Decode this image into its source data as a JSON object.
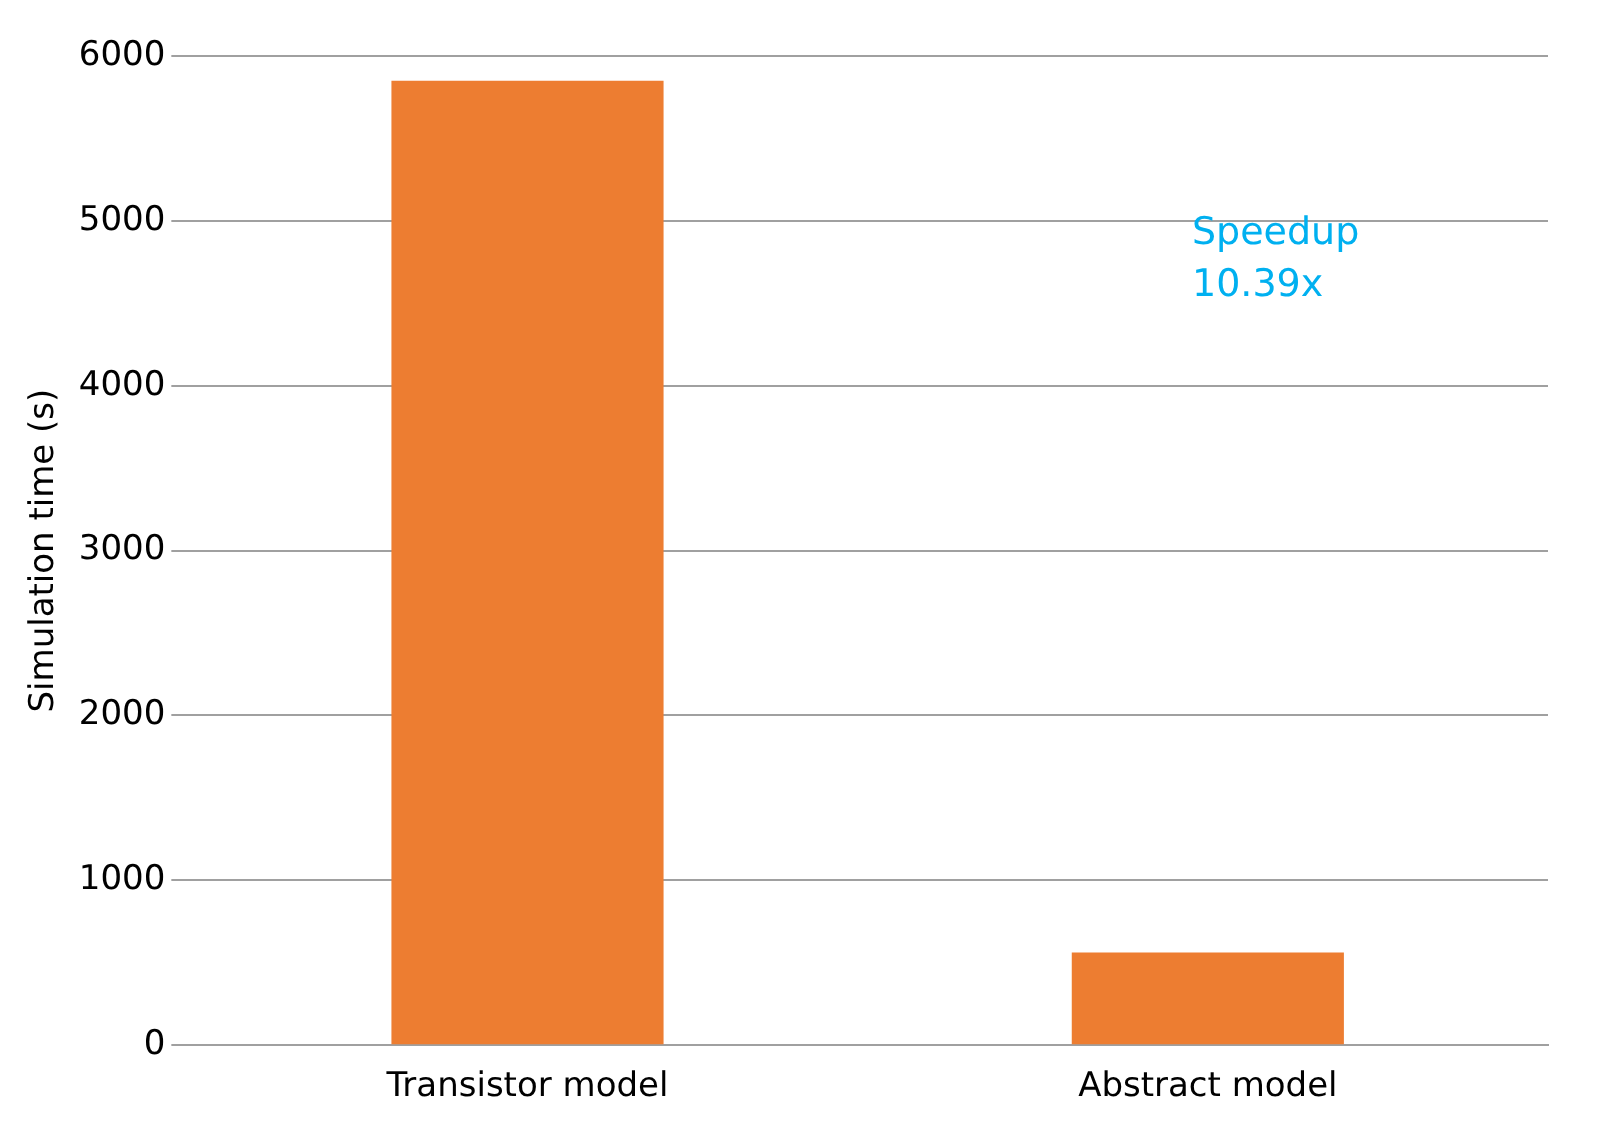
{
  "chart_data": {
    "type": "bar",
    "ylabel": "Simulation time (s)",
    "categories": [
      "Transistor model",
      "Abstract model"
    ],
    "values": [
      5850,
      563
    ],
    "color": "#ed7d31",
    "ylim": [
      0,
      6000
    ],
    "yticks": [
      0,
      1000,
      2000,
      3000,
      4000,
      5000,
      6000
    ],
    "grid": "y",
    "annotations": [
      "Speedup 10.39x"
    ]
  }
}
